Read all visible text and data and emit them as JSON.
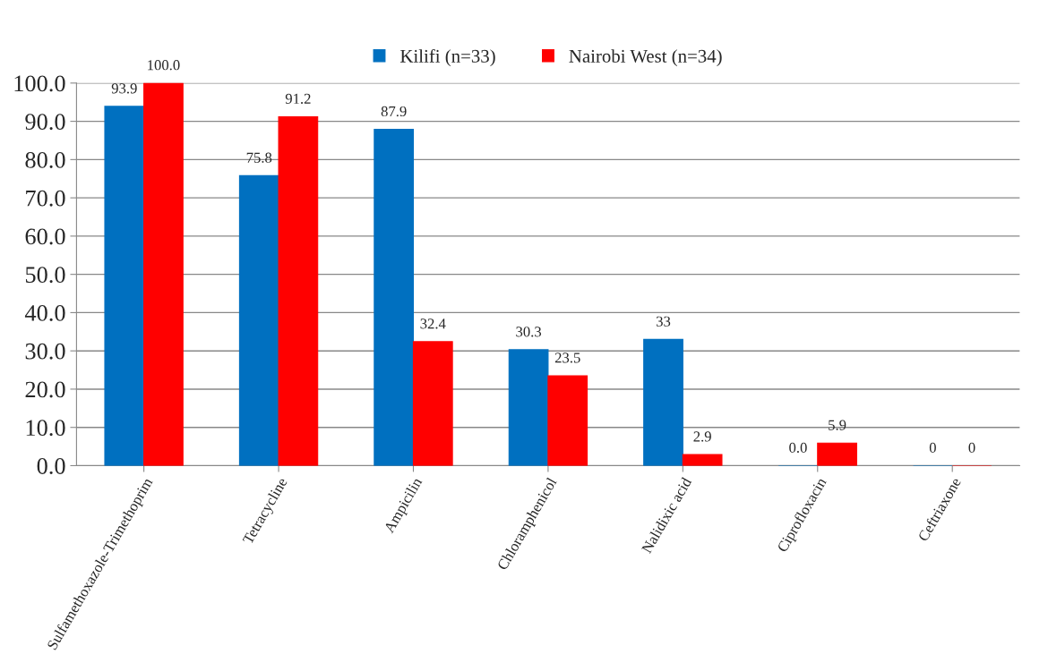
{
  "chart_data": {
    "type": "bar",
    "categories": [
      "Sulfamethoxazole-Trimethoprim",
      "Tetracycline",
      "Ampicilin",
      "Chloramphenicol",
      "Nalidixic acid",
      "Ciprofloxacin",
      "Ceftriaxone"
    ],
    "series": [
      {
        "name": "Kilifi (n=33)",
        "color": "#0070c0",
        "values": [
          93.9,
          75.8,
          87.9,
          30.3,
          33,
          0.0,
          0
        ],
        "value_labels": [
          "93.9",
          "75.8",
          "87.9",
          "30.3",
          "33",
          "0.0",
          "0"
        ]
      },
      {
        "name": "Nairobi West (n=34)",
        "color": "#ff0000",
        "values": [
          100.0,
          91.2,
          32.4,
          23.5,
          2.9,
          5.9,
          0
        ],
        "value_labels": [
          "100.0",
          "91.2",
          "32.4",
          "23.5",
          "2.9",
          "5.9",
          "0"
        ]
      }
    ],
    "ylim": [
      0,
      100
    ],
    "yticks": [
      {
        "value": 0,
        "label": "0.0"
      },
      {
        "value": 10,
        "label": "10.0"
      },
      {
        "value": 20,
        "label": "20.0"
      },
      {
        "value": 30,
        "label": "30.0"
      },
      {
        "value": 40,
        "label": "40.0"
      },
      {
        "value": 50,
        "label": "50.0"
      },
      {
        "value": 60,
        "label": "60.0"
      },
      {
        "value": 70,
        "label": "70.0"
      },
      {
        "value": 80,
        "label": "80.0"
      },
      {
        "value": 90,
        "label": "90.0"
      },
      {
        "value": 100,
        "label": "100.0"
      }
    ],
    "grid": "y",
    "legend": "top"
  }
}
